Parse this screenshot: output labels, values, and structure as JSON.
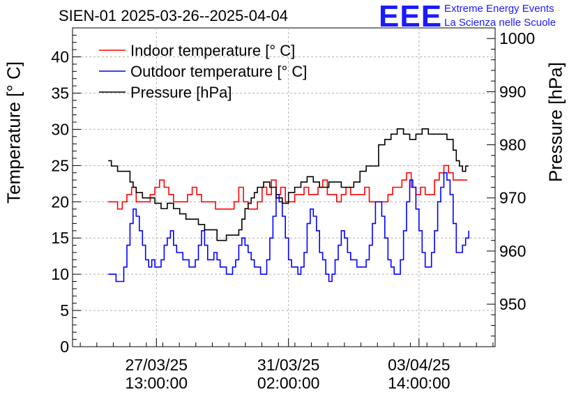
{
  "chart_data": {
    "type": "line",
    "title": "SIEN-01 2025-03-26--2025-04-04",
    "logo": {
      "text": "EEE",
      "line1": "Extreme Energy Events",
      "line2": "La Scienza nelle Scuole",
      "color": "#1a1aff"
    },
    "ylabel_left": "Temperature [° C]",
    "ylabel_right": "Pressure [hPa]",
    "ylim_left": [
      0,
      44
    ],
    "ylim_right": [
      942,
      1002
    ],
    "yticks_left": [
      0,
      5,
      10,
      15,
      20,
      25,
      30,
      35,
      40
    ],
    "yticks_right": [
      950,
      960,
      970,
      980,
      990,
      1000
    ],
    "xlim_hours": [
      -41,
      231
    ],
    "xticks": [
      {
        "hour": 13,
        "date": "27/03/25",
        "time": "13:00:00"
      },
      {
        "hour": 98,
        "date": "31/03/25",
        "time": "02:00:00"
      },
      {
        "hour": 182,
        "date": "03/04/25",
        "time": "14:00:00"
      }
    ],
    "grid": true,
    "legend_position": "top-left",
    "series": [
      {
        "name": "Indoor temperature [° C]",
        "color": "#ff0000",
        "axis": "left",
        "x": [
          -18,
          -14,
          -12,
          -9,
          -6,
          -3,
          0,
          3,
          6,
          9,
          12,
          15,
          18,
          21,
          24,
          27,
          30,
          33,
          36,
          39,
          42,
          45,
          48,
          51,
          54,
          57,
          60,
          63,
          66,
          69,
          72,
          75,
          78,
          81,
          84,
          87,
          90,
          93,
          96,
          99,
          102,
          105,
          108,
          111,
          114,
          117,
          120,
          123,
          126,
          129,
          132,
          135,
          138,
          141,
          144,
          147,
          150,
          153,
          156,
          159,
          162,
          165,
          168,
          171,
          174,
          177,
          180,
          183,
          186,
          189,
          192,
          195,
          198,
          201,
          204,
          207,
          210,
          213
        ],
        "y": [
          20,
          20,
          19,
          20,
          21,
          22,
          20,
          20,
          20,
          21,
          22,
          23,
          22,
          21,
          20,
          20,
          20,
          21,
          22,
          21,
          20,
          20,
          20,
          19,
          19,
          19,
          19,
          20,
          22,
          20,
          19,
          19,
          20,
          22,
          21,
          23,
          21,
          22,
          20,
          20,
          21,
          21,
          22,
          21,
          21,
          22,
          23,
          21,
          21,
          20,
          21,
          22,
          21,
          21,
          21,
          22,
          20,
          20,
          20,
          20,
          21,
          22,
          22,
          23,
          24,
          22,
          21,
          22,
          21,
          21,
          23,
          24,
          25,
          24,
          23,
          23,
          23,
          23
        ]
      },
      {
        "name": "Outdoor temperature [° C]",
        "color": "#0000ff",
        "axis": "left",
        "x": [
          -18,
          -15,
          -13,
          -10,
          -8,
          -6,
          -4,
          -2,
          0,
          2,
          4,
          6,
          8,
          10,
          12,
          14,
          16,
          18,
          20,
          22,
          24,
          26,
          28,
          30,
          32,
          34,
          36,
          38,
          40,
          42,
          44,
          46,
          48,
          50,
          52,
          54,
          56,
          58,
          60,
          62,
          64,
          66,
          68,
          70,
          72,
          74,
          76,
          78,
          80,
          82,
          84,
          86,
          88,
          90,
          92,
          94,
          96,
          98,
          100,
          102,
          104,
          106,
          108,
          110,
          112,
          114,
          116,
          118,
          120,
          122,
          124,
          126,
          128,
          130,
          132,
          134,
          136,
          138,
          140,
          142,
          144,
          146,
          148,
          150,
          152,
          154,
          156,
          158,
          160,
          162,
          164,
          166,
          168,
          170,
          172,
          174,
          176,
          178,
          180,
          182,
          184,
          186,
          188,
          190,
          192,
          194,
          196,
          198,
          200,
          202,
          204,
          206,
          208,
          210,
          212,
          214
        ],
        "y": [
          10,
          10,
          9,
          9,
          11,
          14,
          17,
          19,
          18,
          16,
          14,
          12,
          11,
          12,
          11,
          11,
          12,
          14,
          15,
          16,
          14,
          13,
          13,
          12,
          12,
          11,
          11,
          12,
          14,
          16,
          14,
          12,
          12,
          13,
          12,
          11,
          11,
          10,
          10,
          11,
          12,
          14,
          15,
          14,
          13,
          12,
          11,
          11,
          10,
          10,
          12,
          15,
          18,
          21,
          20,
          18,
          15,
          12,
          11,
          11,
          10,
          11,
          13,
          17,
          19,
          18,
          16,
          13,
          12,
          10,
          9,
          10,
          12,
          14,
          16,
          15,
          13,
          12,
          12,
          11,
          11,
          11,
          12,
          14,
          17,
          20,
          20,
          18,
          15,
          12,
          11,
          10,
          10,
          12,
          16,
          20,
          23,
          22,
          19,
          16,
          13,
          11,
          11,
          13,
          16,
          20,
          22,
          24,
          23,
          21,
          17,
          13,
          13,
          14,
          15,
          16
        ]
      },
      {
        "name": "Pressure [hPa]",
        "color": "#000000",
        "axis": "right",
        "x": [
          -18,
          -16,
          -14,
          -12,
          -8,
          -4,
          -2,
          0,
          4,
          8,
          12,
          16,
          20,
          24,
          28,
          32,
          36,
          40,
          44,
          48,
          52,
          54,
          56,
          58,
          60,
          62,
          64,
          66,
          68,
          70,
          72,
          74,
          76,
          78,
          82,
          86,
          90,
          94,
          98,
          102,
          106,
          110,
          114,
          118,
          120,
          124,
          128,
          132,
          136,
          140,
          144,
          148,
          152,
          156,
          160,
          164,
          168,
          172,
          176,
          180,
          184,
          188,
          192,
          196,
          200,
          204,
          206,
          208,
          210,
          212,
          214
        ],
        "y": [
          977,
          976,
          976,
          975,
          975,
          973,
          972,
          971,
          970,
          970,
          969,
          968,
          969,
          968,
          967,
          966,
          966,
          965,
          964,
          964,
          962,
          962,
          962,
          963,
          963,
          963,
          963,
          964,
          966,
          968,
          969,
          970,
          971,
          972,
          973,
          972,
          970,
          969,
          971,
          972,
          973,
          974,
          973,
          972,
          972,
          973,
          973,
          972,
          972,
          973,
          975,
          976,
          976,
          980,
          981,
          982,
          983,
          982,
          981,
          982,
          983,
          982,
          982,
          982,
          981,
          979,
          977,
          976,
          975,
          976,
          976
        ]
      }
    ]
  }
}
